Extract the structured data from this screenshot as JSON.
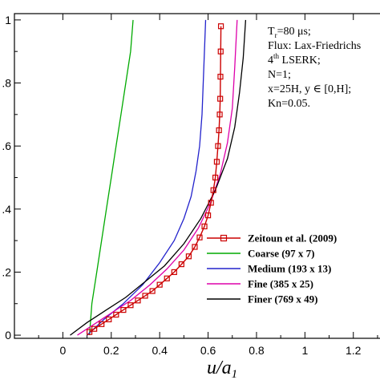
{
  "chart_data": {
    "type": "line",
    "xlabel": "u/a",
    "xlabel_sub": "1",
    "xlim": [
      -0.2,
      1.33
    ],
    "ylim": [
      -0.01,
      1.02
    ],
    "xticks": [
      "0",
      "0.2",
      "0.4",
      "0.6",
      "0.8",
      "1",
      "1.2"
    ],
    "xtick_values": [
      0,
      0.2,
      0.4,
      0.6,
      0.8,
      1.0,
      1.2
    ],
    "yticks": [
      "0",
      ".2",
      ".4",
      ".6",
      ".8",
      "1"
    ],
    "ytick_values": [
      0,
      0.2,
      0.4,
      0.6,
      0.8,
      1.0
    ],
    "annotations": [
      "T",
      "=80  μs;",
      "Flux: Lax-Friedrichs",
      "th",
      "4",
      " LSERK;",
      "N=1;",
      "x=25H, y ∈ [0,H];",
      "Kn=0.05."
    ],
    "annotation_sub": "r",
    "legend_position": "bottom-right",
    "series": [
      {
        "name": "Zeitoun et al. (2009)",
        "color": "#cc0000",
        "marker": "square",
        "x": [
          0.11,
          0.13,
          0.16,
          0.19,
          0.22,
          0.25,
          0.28,
          0.31,
          0.34,
          0.37,
          0.4,
          0.43,
          0.46,
          0.49,
          0.52,
          0.545,
          0.565,
          0.585,
          0.6,
          0.612,
          0.622,
          0.63,
          0.636,
          0.641,
          0.645,
          0.648,
          0.65,
          0.651,
          0.652,
          0.653
        ],
        "y": [
          0.01,
          0.02,
          0.035,
          0.05,
          0.065,
          0.08,
          0.095,
          0.11,
          0.125,
          0.14,
          0.16,
          0.18,
          0.2,
          0.225,
          0.25,
          0.28,
          0.31,
          0.345,
          0.38,
          0.42,
          0.46,
          0.5,
          0.55,
          0.6,
          0.65,
          0.7,
          0.75,
          0.82,
          0.9,
          0.98
        ]
      },
      {
        "name": "Coarse (97 x 7)",
        "color": "#00aa00",
        "x": [
          0.11,
          0.12,
          0.14,
          0.16,
          0.18,
          0.2,
          0.22,
          0.24,
          0.26,
          0.28,
          0.29
        ],
        "y": [
          0.0,
          0.1,
          0.2,
          0.3,
          0.4,
          0.5,
          0.6,
          0.7,
          0.8,
          0.9,
          1.0
        ]
      },
      {
        "name": "Medium (193 x 13)",
        "color": "#2222cc",
        "x": [
          0.1,
          0.17,
          0.25,
          0.33,
          0.4,
          0.46,
          0.5,
          0.53,
          0.55,
          0.565,
          0.575,
          0.58,
          0.585,
          0.59
        ],
        "y": [
          0.0,
          0.05,
          0.1,
          0.16,
          0.23,
          0.3,
          0.37,
          0.44,
          0.52,
          0.6,
          0.7,
          0.8,
          0.9,
          1.0
        ]
      },
      {
        "name": "Fine (385 x 25)",
        "color": "#dd00aa",
        "x": [
          0.06,
          0.12,
          0.2,
          0.28,
          0.36,
          0.43,
          0.5,
          0.56,
          0.61,
          0.65,
          0.68,
          0.7,
          0.71,
          0.72
        ],
        "y": [
          0.0,
          0.03,
          0.07,
          0.11,
          0.16,
          0.21,
          0.27,
          0.34,
          0.42,
          0.51,
          0.61,
          0.72,
          0.85,
          1.0
        ]
      },
      {
        "name": "Finer (769 x 49)",
        "color": "#000000",
        "x": [
          0.03,
          0.1,
          0.18,
          0.26,
          0.34,
          0.42,
          0.5,
          0.57,
          0.63,
          0.68,
          0.71,
          0.73,
          0.745,
          0.755
        ],
        "y": [
          0.0,
          0.04,
          0.08,
          0.12,
          0.17,
          0.22,
          0.29,
          0.37,
          0.46,
          0.56,
          0.66,
          0.77,
          0.88,
          1.0
        ]
      }
    ]
  }
}
